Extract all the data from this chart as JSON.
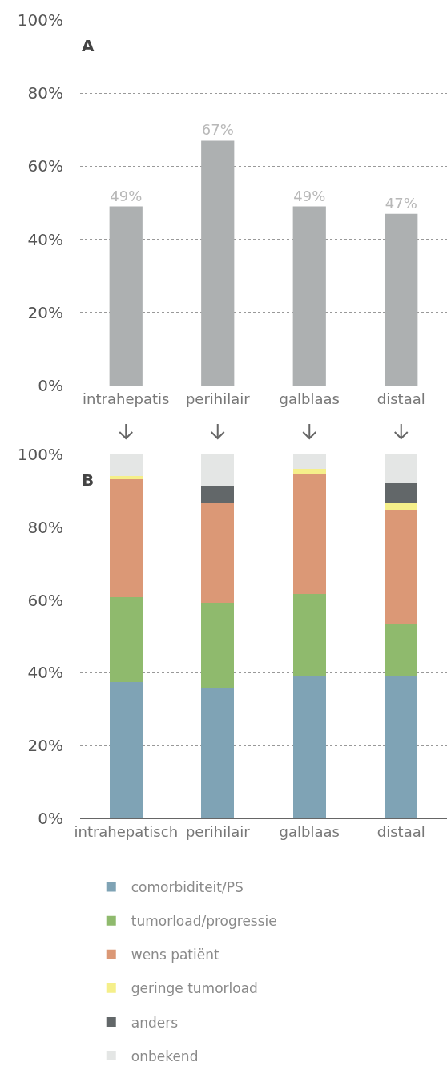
{
  "chart_data": [
    {
      "type": "bar",
      "title": "A",
      "categories": [
        "intrahepatis",
        "perihilair",
        "galblaas",
        "distaal"
      ],
      "values": [
        49,
        67,
        49,
        47
      ],
      "color": "#adb0b1",
      "value_labels": [
        "49%",
        "67%",
        "49%",
        "47%"
      ],
      "ylim": [
        0,
        100
      ],
      "yticks": [
        {
          "value": 0,
          "label": "0%"
        },
        {
          "value": 20,
          "label": "20%"
        },
        {
          "value": 40,
          "label": "40%"
        },
        {
          "value": 60,
          "label": "60%"
        },
        {
          "value": 80,
          "label": "80%"
        },
        {
          "value": 100,
          "label": "100%"
        }
      ],
      "grid": "y"
    },
    {
      "type": "bar",
      "title": "B",
      "stacked": true,
      "legend": "bottom",
      "categories": [
        "intrahepatisch",
        "perihilair",
        "galblaas",
        "distaal"
      ],
      "series": [
        {
          "name": "comorbiditeit/PS",
          "color": "#7fa3b5",
          "values": [
            37.5,
            35.7,
            39.3,
            38.9
          ]
        },
        {
          "name": "tumorload/progressie",
          "color": "#8fba6d",
          "values": [
            23.3,
            23.5,
            22.4,
            14.5
          ]
        },
        {
          "name": "wens patiënt",
          "color": "#db9876",
          "values": [
            32.3,
            27.3,
            32.7,
            31.3
          ]
        },
        {
          "name": "geringe tumorload",
          "color": "#f5ef8a",
          "values": [
            0.9,
            0.3,
            1.7,
            1.8
          ]
        },
        {
          "name": "anders",
          "color": "#626769",
          "values": [
            0,
            4.6,
            0,
            5.7
          ]
        },
        {
          "name": "onbekend",
          "color": "#e4e6e5",
          "values": [
            6.0,
            8.6,
            3.9,
            7.8
          ]
        }
      ],
      "ylim": [
        0,
        100
      ],
      "yticks": [
        {
          "value": 0,
          "label": "0%"
        },
        {
          "value": 20,
          "label": "20%"
        },
        {
          "value": 40,
          "label": "40%"
        },
        {
          "value": 60,
          "label": "60%"
        },
        {
          "value": 80,
          "label": "80%"
        },
        {
          "value": 100,
          "label": "100%"
        }
      ],
      "grid": "y"
    }
  ]
}
